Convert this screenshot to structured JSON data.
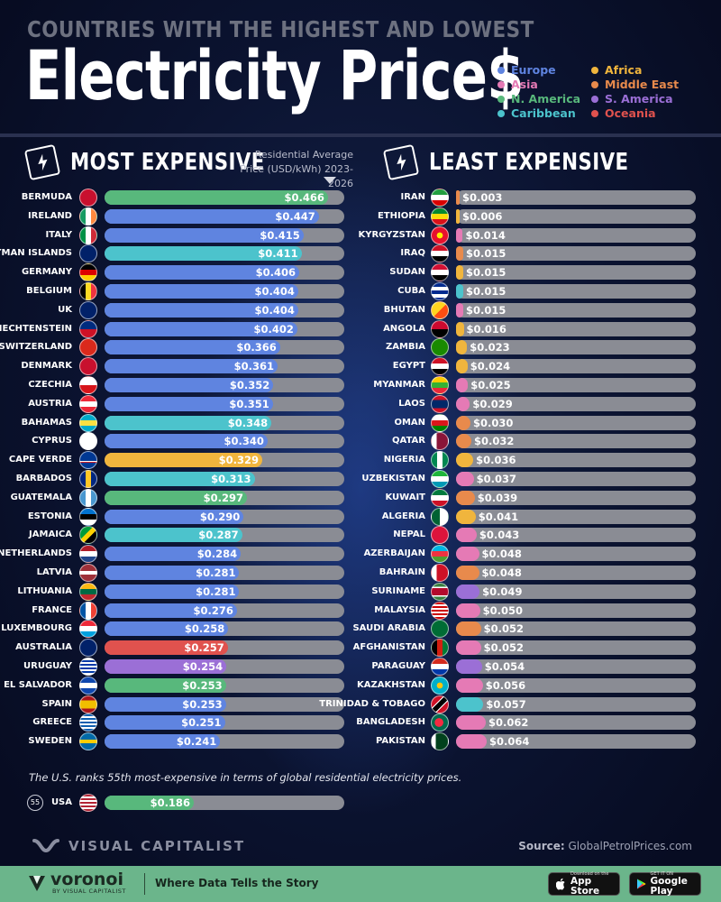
{
  "header": {
    "supertitle": "COUNTRIES WITH THE HIGHEST AND LOWEST",
    "title": "Electricity Price$"
  },
  "legend": [
    {
      "label": "Europe",
      "color": "#5f84e0"
    },
    {
      "label": "Asia",
      "color": "#e57ab5"
    },
    {
      "label": "N. America",
      "color": "#58b87c"
    },
    {
      "label": "Caribbean",
      "color": "#4cc3cc"
    },
    {
      "label": "Africa",
      "color": "#f0b53d"
    },
    {
      "label": "Middle East",
      "color": "#e88a4c"
    },
    {
      "label": "S. America",
      "color": "#9b6fd6"
    },
    {
      "label": "Oceania",
      "color": "#e0524e"
    }
  ],
  "left_section": {
    "title": "MOST EXPENSIVE",
    "note": "Residential Average Price (USD/kWh) 2023-2026"
  },
  "right_section": {
    "title": "LEAST EXPENSIVE"
  },
  "chart_data": [
    {
      "type": "bar",
      "title": "MOST EXPENSIVE",
      "orientation": "horizontal",
      "xlim": [
        0,
        0.5
      ],
      "categories": [
        "BERMUDA",
        "IRELAND",
        "ITALY",
        "CAYMAN ISLANDS",
        "GERMANY",
        "BELGIUM",
        "UK",
        "LIECHTENSTEIN",
        "SWITZERLAND",
        "DENMARK",
        "CZECHIA",
        "AUSTRIA",
        "BAHAMAS",
        "CYPRUS",
        "CAPE VERDE",
        "BARBADOS",
        "GUATEMALA",
        "ESTONIA",
        "JAMAICA",
        "NETHERLANDS",
        "LATVIA",
        "LITHUANIA",
        "FRANCE",
        "LUXEMBOURG",
        "AUSTRALIA",
        "URUGUAY",
        "EL SALVADOR",
        "SPAIN",
        "GREECE",
        "SWEDEN"
      ],
      "values": [
        0.466,
        0.447,
        0.415,
        0.411,
        0.406,
        0.404,
        0.404,
        0.402,
        0.366,
        0.361,
        0.352,
        0.351,
        0.348,
        0.34,
        0.329,
        0.313,
        0.297,
        0.29,
        0.287,
        0.284,
        0.281,
        0.281,
        0.276,
        0.258,
        0.257,
        0.254,
        0.253,
        0.253,
        0.251,
        0.241
      ],
      "labels": [
        "$0.466",
        "$0.447",
        "$0.415",
        "$0.411",
        "$0.406",
        "$0.404",
        "$0.404",
        "$0.402",
        "$0.366",
        "$0.361",
        "$0.352",
        "$0.351",
        "$0.348",
        "$0.340",
        "$0.329",
        "$0.313",
        "$0.297",
        "$0.290",
        "$0.287",
        "$0.284",
        "$0.281",
        "$0.281",
        "$0.276",
        "$0.258",
        "$0.257",
        "$0.254",
        "$0.253",
        "$0.253",
        "$0.251",
        "$0.241"
      ],
      "regions": [
        "N. America",
        "Europe",
        "Europe",
        "Caribbean",
        "Europe",
        "Europe",
        "Europe",
        "Europe",
        "Europe",
        "Europe",
        "Europe",
        "Europe",
        "Caribbean",
        "Europe",
        "Africa",
        "Caribbean",
        "N. America",
        "Europe",
        "Caribbean",
        "Europe",
        "Europe",
        "Europe",
        "Europe",
        "Europe",
        "Oceania",
        "S. America",
        "N. America",
        "Europe",
        "Europe",
        "Europe"
      ]
    },
    {
      "type": "bar",
      "title": "LEAST EXPENSIVE",
      "orientation": "horizontal",
      "xlim": [
        0,
        0.5
      ],
      "categories": [
        "IRAN",
        "ETHIOPIA",
        "KYRGYZSTAN",
        "IRAQ",
        "SUDAN",
        "CUBA",
        "BHUTAN",
        "ANGOLA",
        "ZAMBIA",
        "EGYPT",
        "MYANMAR",
        "LAOS",
        "OMAN",
        "QATAR",
        "NIGERIA",
        "UZBEKISTAN",
        "KUWAIT",
        "ALGERIA",
        "NEPAL",
        "AZERBAIJAN",
        "BAHRAIN",
        "SURINAME",
        "MALAYSIA",
        "SAUDI ARABIA",
        "AFGHANISTAN",
        "PARAGUAY",
        "KAZAKHSTAN",
        "TRINIDAD & TOBAGO",
        "BANGLADESH",
        "PAKISTAN"
      ],
      "values": [
        0.003,
        0.006,
        0.014,
        0.015,
        0.015,
        0.015,
        0.015,
        0.016,
        0.023,
        0.024,
        0.025,
        0.029,
        0.03,
        0.032,
        0.036,
        0.037,
        0.039,
        0.041,
        0.043,
        0.048,
        0.048,
        0.049,
        0.05,
        0.052,
        0.052,
        0.054,
        0.056,
        0.057,
        0.062,
        0.064
      ],
      "labels": [
        "$0.003",
        "$0.006",
        "$0.014",
        "$0.015",
        "$0.015",
        "$0.015",
        "$0.015",
        "$0.016",
        "$0.023",
        "$0.024",
        "$0.025",
        "$0.029",
        "$0.030",
        "$0.032",
        "$0.036",
        "$0.037",
        "$0.039",
        "$0.041",
        "$0.043",
        "$0.048",
        "$0.048",
        "$0.049",
        "$0.050",
        "$0.052",
        "$0.052",
        "$0.054",
        "$0.056",
        "$0.057",
        "$0.062",
        "$0.064"
      ],
      "regions": [
        "Middle East",
        "Africa",
        "Asia",
        "Middle East",
        "Africa",
        "Caribbean",
        "Asia",
        "Africa",
        "Africa",
        "Africa",
        "Asia",
        "Asia",
        "Middle East",
        "Middle East",
        "Africa",
        "Asia",
        "Middle East",
        "Africa",
        "Asia",
        "Asia",
        "Middle East",
        "S. America",
        "Asia",
        "Middle East",
        "Asia",
        "S. America",
        "Asia",
        "Caribbean",
        "Asia",
        "Asia"
      ]
    }
  ],
  "footnote": "The U.S. ranks 55th most-expensive in terms of global residential electricity prices.",
  "usa": {
    "rank": "55",
    "country": "USA",
    "value": 0.186,
    "label": "$0.186",
    "region": "N. America"
  },
  "brand": "VISUAL CAPITALIST",
  "source": {
    "prefix": "Source:",
    "name": "GlobalPetrolPrices.com"
  },
  "bottom": {
    "logo": "voronoi",
    "logo_by": "BY VISUAL CAPITALIST",
    "tagline": "Where Data Tells the Story",
    "app_store_small": "Download on the",
    "app_store_big": "App Store",
    "google_small": "GET IT ON",
    "google_big": "Google Play"
  }
}
